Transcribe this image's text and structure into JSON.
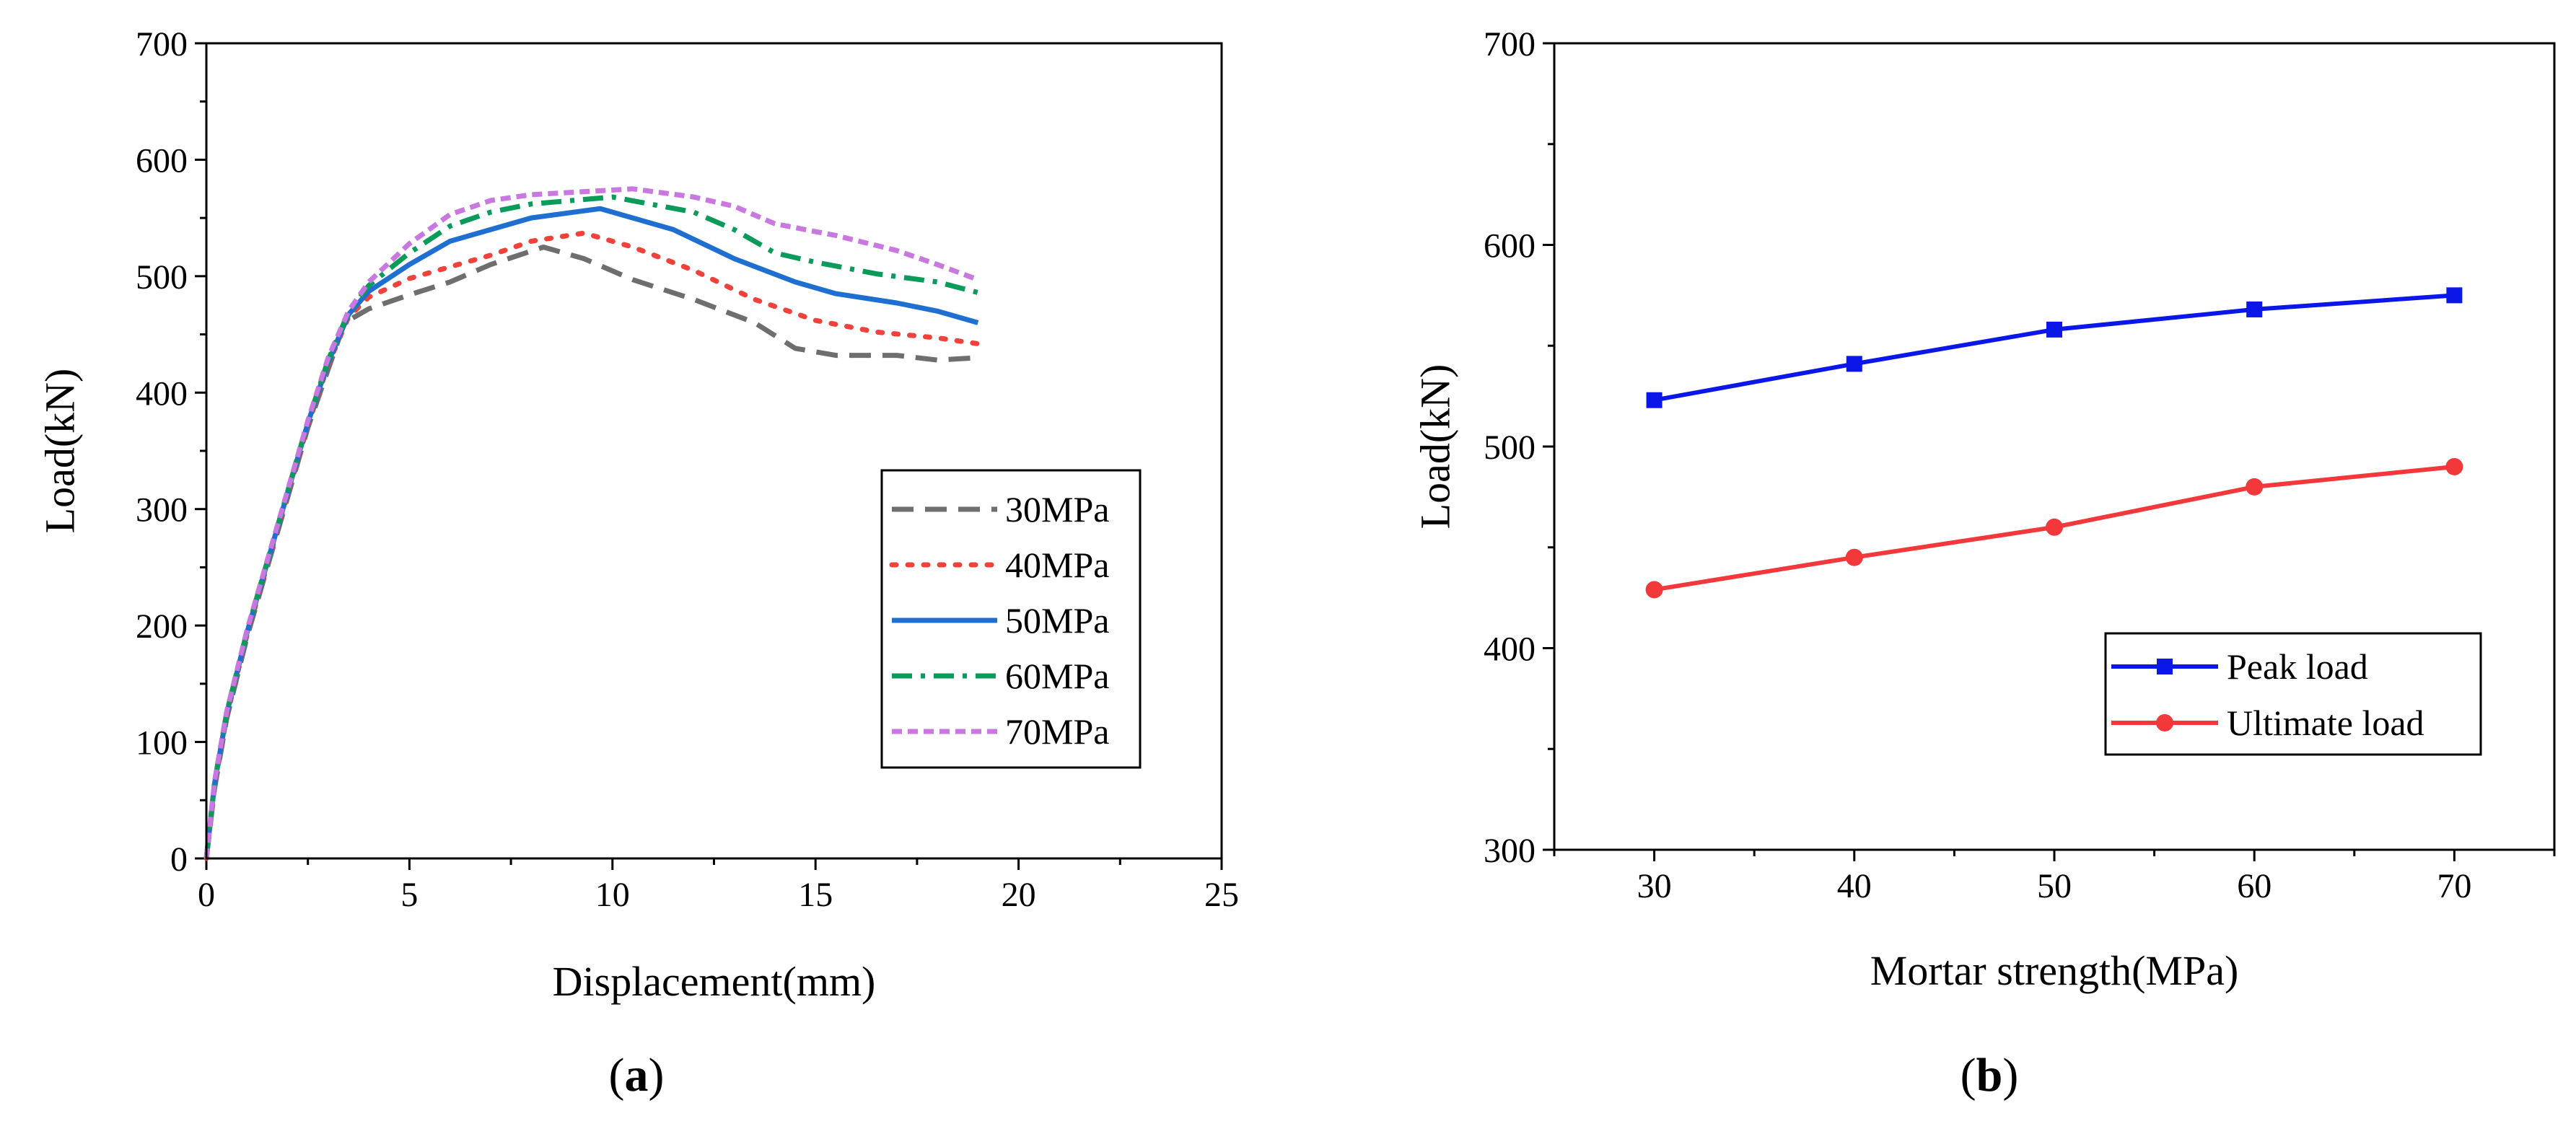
{
  "panels": [
    {
      "label_open": "(",
      "label_letter": "a",
      "label_close": ")"
    },
    {
      "label_open": "(",
      "label_letter": "b",
      "label_close": ")"
    }
  ],
  "chart_data": [
    {
      "type": "line",
      "xlabel": "Displacement(mm)",
      "ylabel": "Load(kN)",
      "xlim": [
        0,
        25
      ],
      "ylim": [
        0,
        700
      ],
      "xticks": [
        0,
        5,
        10,
        15,
        20,
        25
      ],
      "yticks": [
        0,
        100,
        200,
        300,
        400,
        500,
        600,
        700
      ],
      "grid": false,
      "legend_position": "right",
      "series": [
        {
          "name": "30MPa",
          "color": "#6e6e6e",
          "dash": "dashed",
          "x": [
            0,
            0.2,
            0.5,
            1,
            1.5,
            2,
            2.5,
            3,
            3.4,
            4,
            5,
            6,
            7,
            8.3,
            9.3,
            10.5,
            12,
            13.5,
            14.5,
            15.5,
            17,
            18,
            19
          ],
          "y": [
            0,
            60,
            120,
            190,
            250,
            310,
            370,
            420,
            460,
            472,
            484,
            495,
            510,
            525,
            515,
            497,
            480,
            460,
            438,
            432,
            432,
            428,
            430
          ]
        },
        {
          "name": "40MPa",
          "color": "#f0413a",
          "dash": "dotted",
          "x": [
            0,
            0.2,
            0.5,
            1,
            1.5,
            2,
            2.5,
            3,
            3.5,
            4,
            5,
            6,
            7,
            8,
            9.3,
            10.5,
            12,
            13.5,
            15,
            16.5,
            18,
            19
          ],
          "y": [
            0,
            62,
            122,
            192,
            252,
            312,
            372,
            424,
            465,
            482,
            498,
            508,
            518,
            530,
            537,
            525,
            505,
            480,
            462,
            452,
            447,
            442
          ]
        },
        {
          "name": "50MPa",
          "color": "#1f6fd1",
          "dash": "solid",
          "x": [
            0,
            0.2,
            0.5,
            1,
            1.5,
            2,
            2.5,
            3,
            3.5,
            4,
            5,
            6,
            7,
            8,
            9.7,
            11.5,
            13,
            14.5,
            15.5,
            17,
            18,
            19
          ],
          "y": [
            0,
            64,
            124,
            194,
            254,
            314,
            374,
            426,
            467,
            487,
            510,
            530,
            540,
            550,
            558,
            540,
            515,
            495,
            485,
            477,
            470,
            460
          ]
        },
        {
          "name": "60MPa",
          "color": "#0a9b5a",
          "dash": "dashdot",
          "x": [
            0,
            0.2,
            0.5,
            1,
            1.5,
            2,
            2.5,
            3,
            3.5,
            4,
            5,
            6,
            7,
            8,
            10,
            12,
            13,
            14,
            15,
            16.5,
            18,
            19
          ],
          "y": [
            0,
            65,
            125,
            195,
            255,
            315,
            375,
            428,
            469,
            492,
            520,
            543,
            555,
            562,
            568,
            555,
            540,
            520,
            512,
            502,
            495,
            486
          ]
        },
        {
          "name": "70MPa",
          "color": "#c978e0",
          "dash": "shortdash",
          "x": [
            0,
            0.2,
            0.5,
            1,
            1.5,
            2,
            2.5,
            3,
            3.5,
            4,
            5,
            6,
            7,
            8,
            10.5,
            12,
            13,
            14,
            15.5,
            17,
            18,
            19
          ],
          "y": [
            0,
            66,
            126,
            196,
            256,
            316,
            376,
            430,
            470,
            495,
            528,
            553,
            565,
            570,
            575,
            568,
            560,
            545,
            535,
            522,
            510,
            497
          ]
        }
      ]
    },
    {
      "type": "line",
      "xlabel": "Mortar strength(MPa)",
      "ylabel": "Load(kN)",
      "xlim": [
        25,
        75
      ],
      "ylim": [
        300,
        700
      ],
      "xticks": [
        30,
        40,
        50,
        60,
        70
      ],
      "yticks": [
        300,
        400,
        500,
        600,
        700
      ],
      "grid": false,
      "legend_position": "bottom-right",
      "categories": [
        30,
        40,
        50,
        60,
        70
      ],
      "series": [
        {
          "name": "Peak load",
          "color": "#0b17e8",
          "marker": "square",
          "values": [
            523,
            541,
            558,
            568,
            575
          ]
        },
        {
          "name": "Ultimate load",
          "color": "#f2383a",
          "marker": "circle",
          "values": [
            429,
            445,
            460,
            480,
            490
          ]
        }
      ]
    }
  ]
}
